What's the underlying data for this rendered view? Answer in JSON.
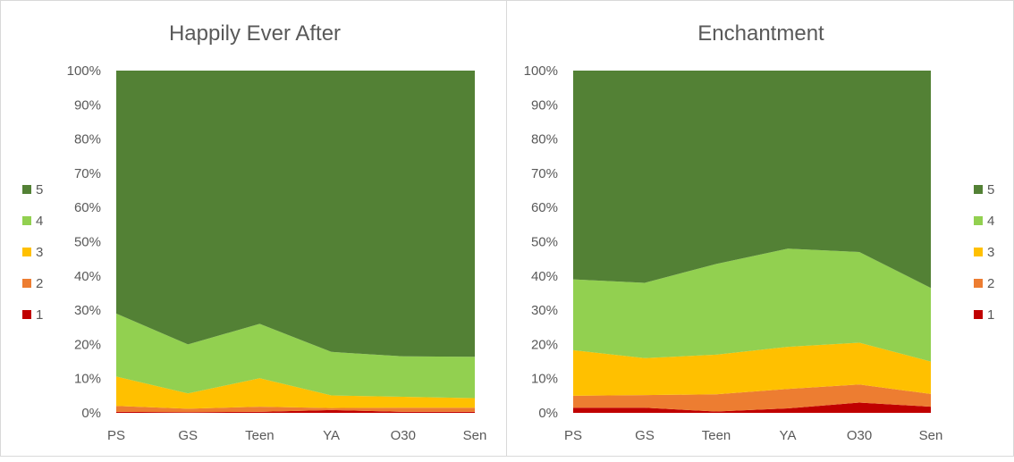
{
  "chart_data": [
    {
      "type": "area",
      "stacked": "percent",
      "title": "Happily Ever After",
      "categories": [
        "PS",
        "GS",
        "Teen",
        "YA",
        "O30",
        "Sen"
      ],
      "y_ticks": [
        "0%",
        "10%",
        "20%",
        "30%",
        "40%",
        "50%",
        "60%",
        "70%",
        "80%",
        "90%",
        "100%"
      ],
      "ylim": [
        0,
        100
      ],
      "legend_position": "left",
      "series": [
        {
          "name": "1",
          "color": "#C00000",
          "values": [
            0.3,
            0.2,
            0.3,
            0.8,
            0.3,
            0.3
          ]
        },
        {
          "name": "2",
          "color": "#ED7D31",
          "values": [
            1.7,
            1.0,
            1.5,
            0.6,
            1.2,
            1.2
          ]
        },
        {
          "name": "3",
          "color": "#FFC000",
          "values": [
            8.6,
            4.5,
            8.3,
            3.7,
            3.2,
            2.8
          ]
        },
        {
          "name": "4",
          "color": "#92D050",
          "values": [
            18.4,
            14.3,
            15.9,
            12.7,
            11.8,
            12.1
          ]
        },
        {
          "name": "5",
          "color": "#538135",
          "values": [
            71.0,
            80.0,
            74.0,
            82.2,
            83.5,
            83.6
          ]
        }
      ]
    },
    {
      "type": "area",
      "stacked": "percent",
      "title": "Enchantment",
      "categories": [
        "PS",
        "GS",
        "Teen",
        "YA",
        "O30",
        "Sen"
      ],
      "y_ticks": [
        "0%",
        "10%",
        "20%",
        "30%",
        "40%",
        "50%",
        "60%",
        "70%",
        "80%",
        "90%",
        "100%"
      ],
      "ylim": [
        0,
        100
      ],
      "legend_position": "right",
      "series": [
        {
          "name": "1",
          "color": "#C00000",
          "values": [
            1.5,
            1.5,
            0.4,
            1.3,
            3.0,
            1.8
          ]
        },
        {
          "name": "2",
          "color": "#ED7D31",
          "values": [
            3.5,
            3.7,
            5.0,
            5.7,
            5.3,
            3.7
          ]
        },
        {
          "name": "3",
          "color": "#FFC000",
          "values": [
            13.3,
            10.8,
            11.6,
            12.3,
            12.2,
            9.5
          ]
        },
        {
          "name": "4",
          "color": "#92D050",
          "values": [
            20.7,
            22.0,
            26.5,
            28.7,
            26.5,
            21.5
          ]
        },
        {
          "name": "5",
          "color": "#538135",
          "values": [
            61.0,
            62.0,
            56.5,
            52.0,
            53.0,
            63.5
          ]
        }
      ]
    }
  ]
}
